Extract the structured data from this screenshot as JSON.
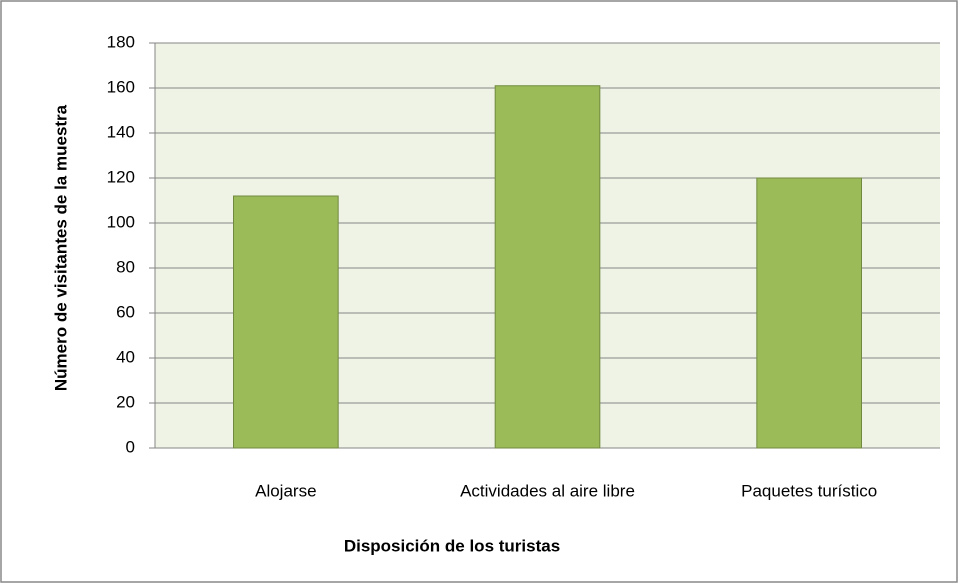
{
  "chart_data": {
    "type": "bar",
    "categories": [
      "Alojarse",
      "Actividades al aire libre",
      "Paquetes turístico"
    ],
    "values": [
      112,
      161,
      120
    ],
    "color": "#9bbb59",
    "xlabel": "Disposición de los turistas",
    "ylabel": "Número de visitantes de la muestra",
    "ylim": [
      0,
      180
    ],
    "yticks": [
      0,
      20,
      40,
      60,
      80,
      100,
      120,
      140,
      160,
      180
    ],
    "grid": true
  }
}
